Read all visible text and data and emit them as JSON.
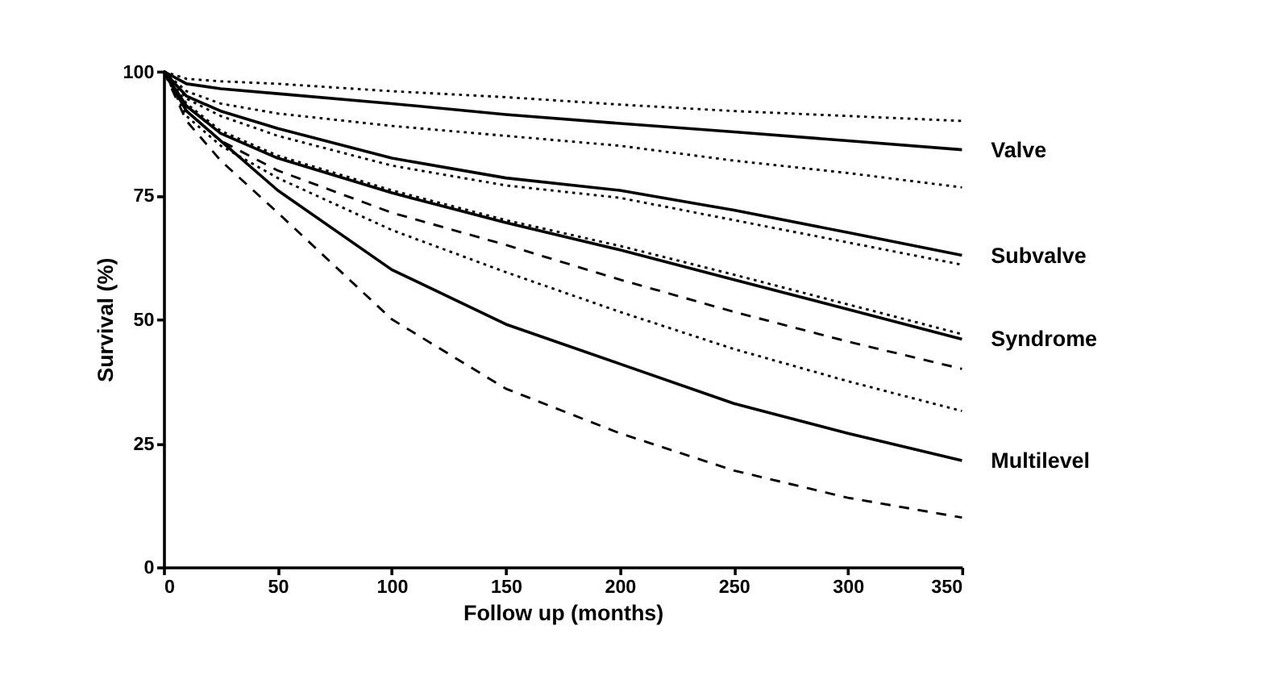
{
  "chart_data": {
    "type": "line",
    "xlabel": "Follow up (months)",
    "ylabel": "Survival  (%)",
    "x": [
      0,
      10,
      25,
      50,
      100,
      150,
      200,
      250,
      300,
      350
    ],
    "series": [
      {
        "color": "#000000",
        "line_style": "dotted",
        "values": [
          100,
          98.5,
          98,
          97.5,
          96,
          94.8,
          93.3,
          92,
          91,
          90
        ]
      },
      {
        "name": "Valve",
        "color": "#000000",
        "line_style": "solid",
        "values": [
          100,
          97.5,
          96.5,
          95.5,
          93.5,
          91.3,
          89.5,
          87.8,
          86,
          84.2
        ]
      },
      {
        "color": "#000000",
        "line_style": "dotted",
        "values": [
          100,
          96,
          93.5,
          91.5,
          89,
          87,
          85,
          82,
          79.5,
          76.6
        ]
      },
      {
        "name": "Subvalve",
        "color": "#000000",
        "line_style": "solid",
        "values": [
          100,
          95,
          92,
          88.5,
          82.5,
          78.5,
          76,
          72,
          67.5,
          62.9
        ]
      },
      {
        "color": "#000000",
        "line_style": "dotted",
        "values": [
          100,
          94.5,
          91,
          87,
          81,
          77,
          74.5,
          70,
          65.5,
          61
        ]
      },
      {
        "color": "#000000",
        "line_style": "dotted",
        "values": [
          100,
          93.5,
          88,
          83,
          76,
          70,
          64.8,
          59,
          53,
          47
        ]
      },
      {
        "name": "Syndrome",
        "color": "#000000",
        "line_style": "solid",
        "values": [
          100,
          93,
          87.5,
          82.5,
          75.5,
          69.5,
          64,
          58,
          52,
          46
        ]
      },
      {
        "color": "#000000",
        "line_style": "dashed",
        "values": [
          100,
          92,
          86,
          80,
          71.5,
          65,
          58,
          51.5,
          45.5,
          40
        ]
      },
      {
        "color": "#000000",
        "line_style": "dotted",
        "values": [
          100,
          91,
          85,
          78.5,
          68,
          59.5,
          51.5,
          44,
          37.5,
          31.5
        ]
      },
      {
        "name": "Multilevel",
        "color": "#000000",
        "line_style": "solid",
        "values": [
          100,
          92,
          86,
          76,
          60,
          49,
          41,
          33,
          27,
          21.5
        ]
      },
      {
        "color": "#000000",
        "line_style": "dashed",
        "values": [
          100,
          90,
          82,
          71.5,
          50,
          36,
          27,
          19.5,
          14,
          10
        ]
      }
    ],
    "xlim": [
      0,
      350
    ],
    "xticks": [
      0,
      50,
      100,
      150,
      200,
      250,
      300,
      350
    ],
    "ylim": [
      0,
      100
    ],
    "yticks": [
      0,
      25,
      50,
      75,
      100
    ],
    "grid": false
  }
}
